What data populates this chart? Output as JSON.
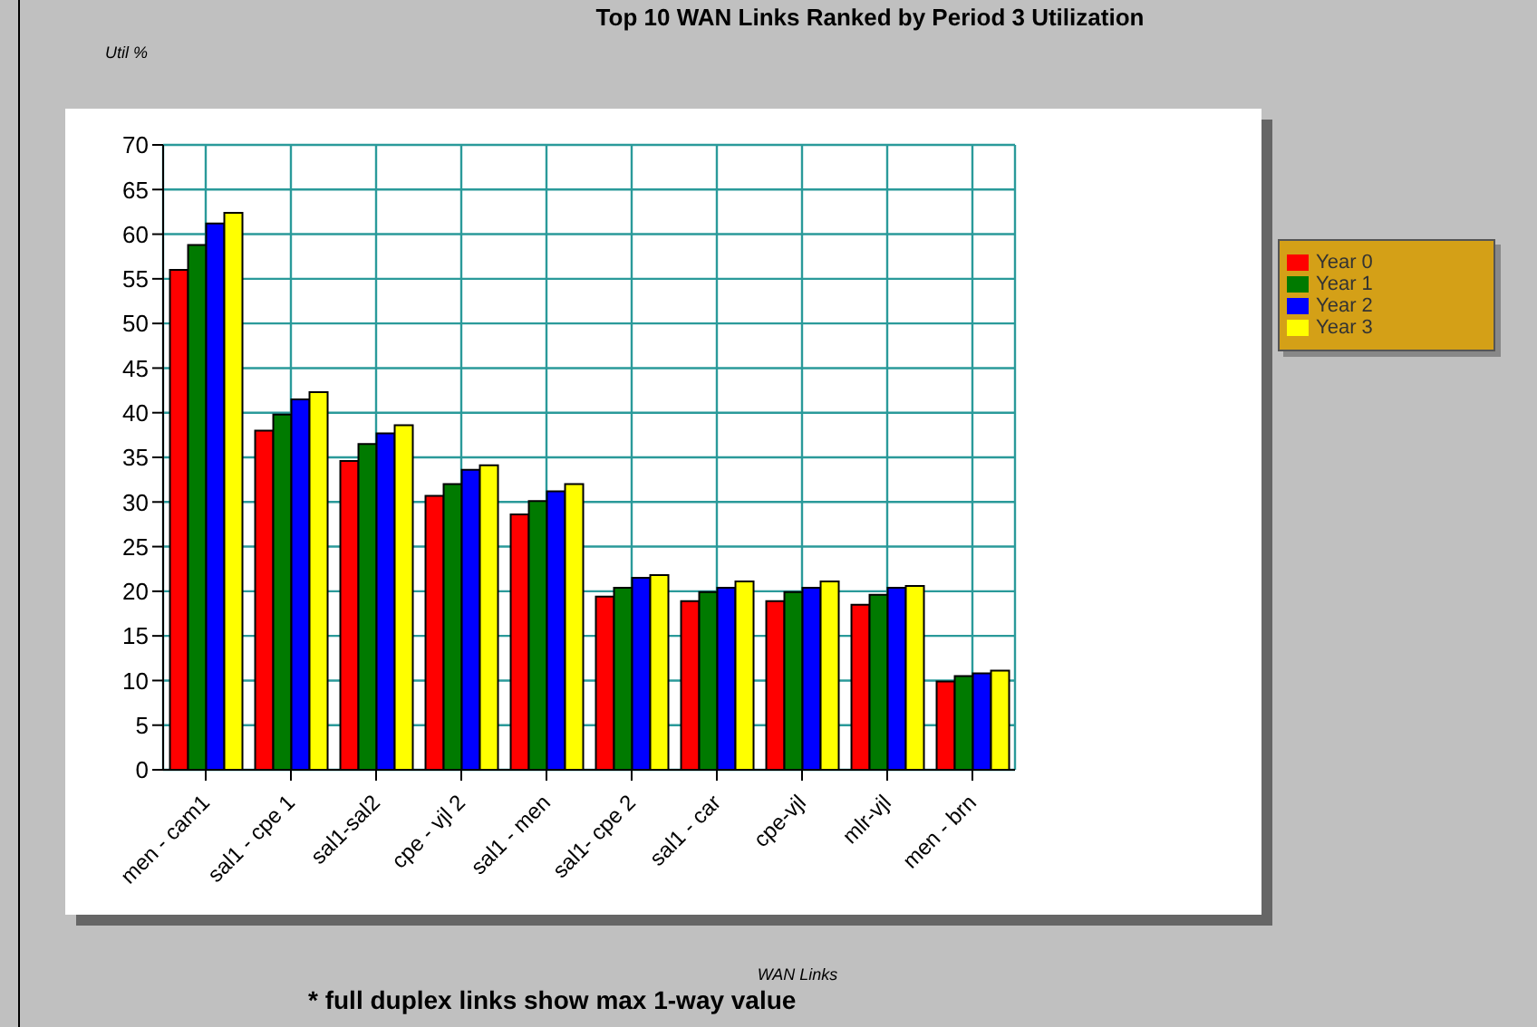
{
  "chart_data": {
    "type": "bar",
    "title": "Top 10 WAN Links Ranked by Period 3 Utilization",
    "ylabel": "Util %",
    "xlabel": "WAN Links",
    "annotations": [
      "* full duplex links show max 1-way value"
    ],
    "categories": [
      "men - cam1",
      "sal1 - cpe 1",
      "sal1-sal2",
      "cpe - vjl 2",
      "sal1 - men",
      "sal1- cpe 2",
      "sal1 - car",
      "cpe-vjl",
      "mlr-vjl",
      "men - brn"
    ],
    "series": [
      {
        "name": "Year 0",
        "color": "#ff0000",
        "values": [
          56,
          38,
          34.6,
          30.7,
          28.6,
          19.4,
          18.9,
          18.9,
          18.5,
          9.9
        ]
      },
      {
        "name": "Year 1",
        "color": "#007a00",
        "values": [
          58.8,
          39.8,
          36.5,
          32,
          30.1,
          20.4,
          19.9,
          19.9,
          19.6,
          10.5
        ]
      },
      {
        "name": "Year 2",
        "color": "#0000ff",
        "values": [
          61.2,
          41.5,
          37.7,
          33.6,
          31.2,
          21.5,
          20.4,
          20.4,
          20.4,
          10.8
        ]
      },
      {
        "name": "Year 3",
        "color": "#ffff00",
        "values": [
          62.4,
          42.3,
          38.6,
          34.1,
          32,
          21.8,
          21.1,
          21.1,
          20.6,
          11.1
        ]
      }
    ],
    "ylim": [
      0,
      70
    ],
    "yticks": [
      0,
      5,
      10,
      15,
      20,
      25,
      30,
      35,
      40,
      45,
      50,
      55,
      60,
      65,
      70
    ],
    "grid": true,
    "legend": "right"
  }
}
